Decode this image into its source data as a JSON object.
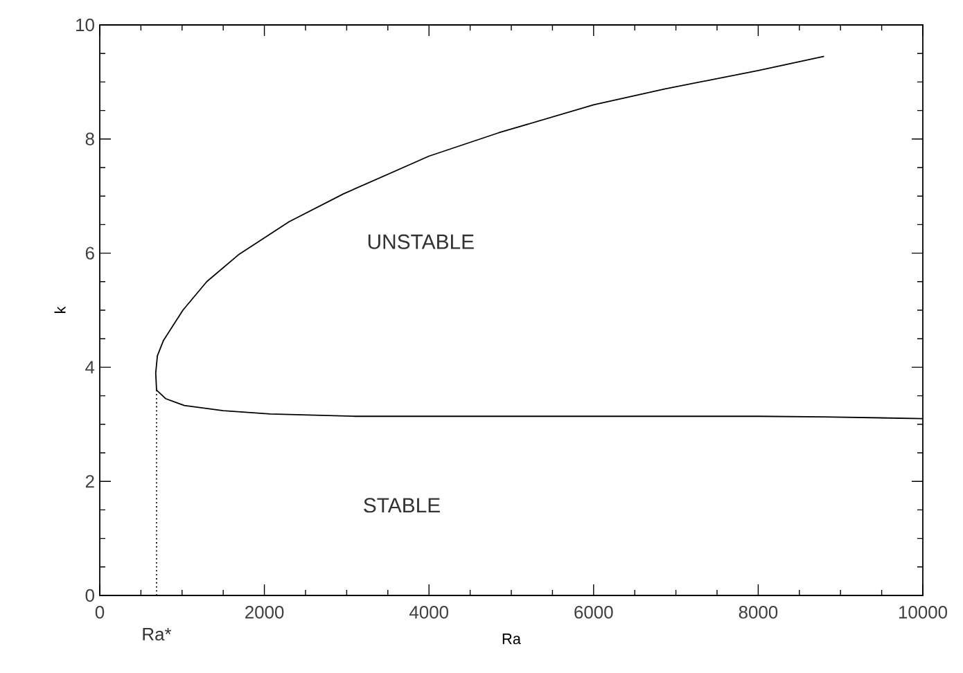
{
  "chart_data": {
    "type": "line",
    "xlabel": "Ra",
    "ylabel": "k",
    "xlim": [
      0,
      10000
    ],
    "ylim": [
      0,
      10
    ],
    "xticks": [
      0,
      2000,
      4000,
      6000,
      8000,
      10000
    ],
    "yticks": [
      0,
      2,
      4,
      6,
      8,
      10
    ],
    "grid": false,
    "marker": "none",
    "series": [
      {
        "color": "#000000",
        "line_style": "solid",
        "x": [
          8800,
          8000,
          6869,
          6000,
          4848,
          4000,
          2963,
          2300,
          1684,
          1300,
          1010,
          774,
          700,
          680,
          690,
          800,
          1027,
          1500,
          2070,
          3114,
          8000,
          8800,
          10000
        ],
        "values": [
          9.45,
          9.2,
          8.88,
          8.6,
          8.11,
          7.7,
          7.04,
          6.55,
          5.97,
          5.5,
          5.0,
          4.47,
          4.2,
          3.9,
          3.6,
          3.45,
          3.33,
          3.24,
          3.18,
          3.14,
          3.14,
          3.13,
          3.1
        ]
      },
      {
        "color": "#000000",
        "line_style": "dotted",
        "x": [
          690,
          690
        ],
        "values": [
          0,
          3.6
        ]
      }
    ],
    "annotations": [
      "UNSTABLE",
      "STABLE",
      {
        "text": "Ra*",
        "x": 690,
        "y": 0
      }
    ]
  }
}
